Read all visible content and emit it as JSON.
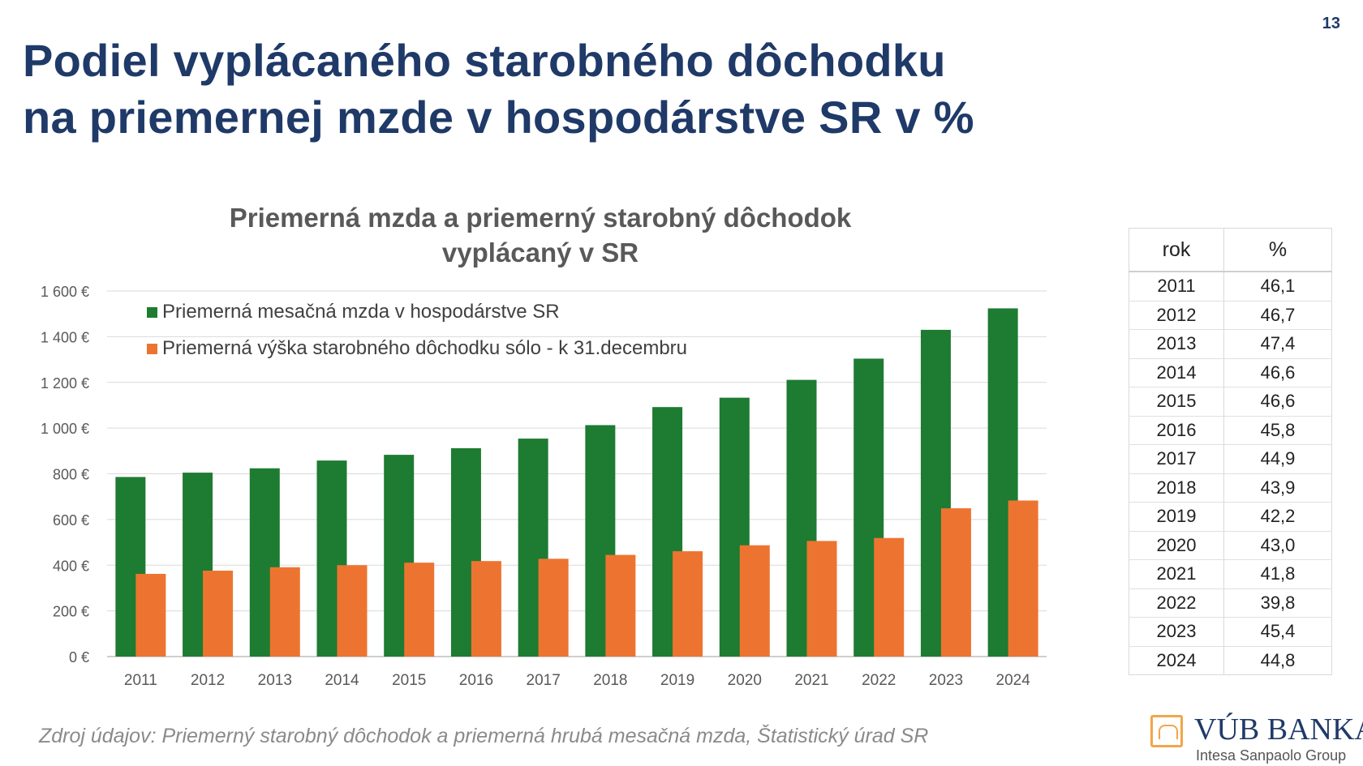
{
  "page_number": "13",
  "title_line1": "Podiel vyplácaného starobného dôchodku",
  "title_line2": "na priemernej mzde v hospodárstve SR v %",
  "chart_data": {
    "type": "bar",
    "title_line1": "Priemerná mzda a priemerný starobný dôchodok",
    "title_line2": "vyplácaný v SR",
    "categories": [
      "2011",
      "2012",
      "2013",
      "2014",
      "2015",
      "2016",
      "2017",
      "2018",
      "2019",
      "2020",
      "2021",
      "2022",
      "2023",
      "2024"
    ],
    "series": [
      {
        "name": "Priemerná mesačná mzda v hospodárstve SR",
        "color": "#1e7b32",
        "values": [
          786,
          805,
          824,
          858,
          883,
          912,
          954,
          1013,
          1092,
          1133,
          1211,
          1304,
          1430,
          1524
        ]
      },
      {
        "name": "Priemerná výška starobného dôchodku sólo - k 31.decembru",
        "color": "#ed7430",
        "values": [
          362,
          376,
          391,
          400,
          411,
          418,
          428,
          445,
          461,
          487,
          506,
          519,
          649,
          683
        ]
      }
    ],
    "ylim": [
      0,
      1600
    ],
    "yticks": [
      0,
      200,
      400,
      600,
      800,
      1000,
      1200,
      1400,
      1600
    ],
    "ytick_labels": [
      "0 €",
      "200 €",
      "400 €",
      "600 €",
      "800 €",
      "1 000 €",
      "1 200 €",
      "1 400 €",
      "1 600 €"
    ],
    "xlabel": "",
    "ylabel": "",
    "grid": true,
    "legend_position": "top-left"
  },
  "table": {
    "headers": [
      "rok",
      "%"
    ],
    "rows": [
      [
        "2011",
        "46,1"
      ],
      [
        "2012",
        "46,7"
      ],
      [
        "2013",
        "47,4"
      ],
      [
        "2014",
        "46,6"
      ],
      [
        "2015",
        "46,6"
      ],
      [
        "2016",
        "45,8"
      ],
      [
        "2017",
        "44,9"
      ],
      [
        "2018",
        "43,9"
      ],
      [
        "2019",
        "42,2"
      ],
      [
        "2020",
        "43,0"
      ],
      [
        "2021",
        "41,8"
      ],
      [
        "2022",
        "39,8"
      ],
      [
        "2023",
        "45,4"
      ],
      [
        "2024",
        "44,8"
      ]
    ]
  },
  "source_note": "Zdroj údajov: Priemerný starobný dôchodok a priemerná hrubá mesačná mzda, Štatistický úrad SR",
  "logo": {
    "name": "VÚB BANKA",
    "subtitle": "Intesa Sanpaolo Group",
    "color": "#1f3a68",
    "accent": "#f0a64a"
  }
}
